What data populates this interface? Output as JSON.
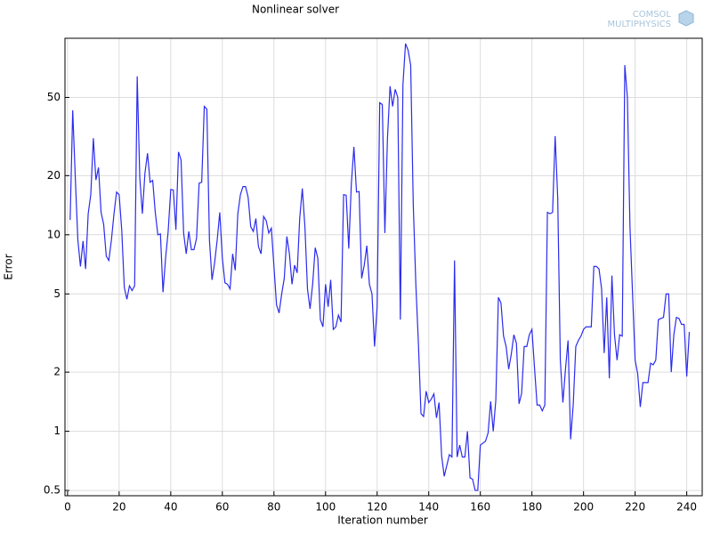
{
  "chart_data": {
    "type": "line",
    "title": "Nonlinear solver",
    "xlabel": "Iteration number",
    "ylabel": "Error",
    "log_y": true,
    "grid": true,
    "x": [
      1,
      2,
      3,
      4,
      5,
      6,
      7,
      8,
      9,
      10,
      11,
      12,
      13,
      14,
      15,
      16,
      17,
      18,
      19,
      20,
      21,
      22,
      23,
      24,
      25,
      26,
      27,
      28,
      29,
      30,
      31,
      32,
      33,
      34,
      35,
      36,
      37,
      38,
      39,
      40,
      41,
      42,
      43,
      44,
      45,
      46,
      47,
      48,
      49,
      50,
      51,
      52,
      53,
      54,
      55,
      56,
      57,
      58,
      59,
      60,
      61,
      62,
      63,
      64,
      65,
      66,
      67,
      68,
      69,
      70,
      71,
      72,
      73,
      74,
      75,
      76,
      77,
      78,
      79,
      80,
      81,
      82,
      83,
      84,
      85,
      86,
      87,
      88,
      89,
      90,
      91,
      92,
      93,
      94,
      95,
      96,
      97,
      98,
      99,
      100,
      101,
      102,
      103,
      104,
      105,
      106,
      107,
      108,
      109,
      110,
      111,
      112,
      113,
      114,
      115,
      116,
      117,
      118,
      119,
      120,
      121,
      122,
      123,
      124,
      125,
      126,
      127,
      128,
      129,
      130,
      131,
      132,
      133,
      134,
      135,
      136,
      137,
      138,
      139,
      140,
      141,
      142,
      143,
      144,
      145,
      146,
      147,
      148,
      149,
      150,
      151,
      152,
      153,
      154,
      155,
      156,
      157,
      158,
      159,
      160,
      161,
      162,
      163,
      164,
      165,
      166,
      167,
      168,
      169,
      170,
      171,
      172,
      173,
      174,
      175,
      176,
      177,
      178,
      179,
      180,
      181,
      182,
      183,
      184,
      185,
      186,
      187,
      188,
      189,
      190,
      191,
      192,
      193,
      194,
      195,
      196,
      197,
      198,
      199,
      200,
      201,
      202,
      203,
      204,
      205,
      206,
      207,
      208,
      209,
      210,
      211,
      212,
      213,
      214,
      215,
      216,
      217,
      218,
      219,
      220,
      221,
      222,
      223,
      224,
      225,
      226,
      227,
      228,
      229,
      230,
      231,
      232,
      233,
      234,
      235,
      236,
      237,
      238,
      239,
      240,
      241
    ],
    "series": [
      {
        "name": "Error",
        "color": "#2b2bee",
        "values": [
          11.9,
          43,
          19.5,
          9.4,
          6.9,
          9.3,
          6.7,
          12.8,
          16,
          31,
          19,
          22,
          13,
          11.3,
          7.8,
          7.4,
          9.4,
          12.8,
          16.5,
          16,
          10.6,
          5.4,
          4.7,
          5.5,
          5.2,
          5.5,
          64,
          19.5,
          12.8,
          20.6,
          26,
          18.5,
          18.9,
          13,
          10,
          10.1,
          5.1,
          7.6,
          10.4,
          17,
          16.9,
          10.6,
          26.4,
          24,
          10.2,
          8.0,
          10.4,
          8.4,
          8.4,
          9.6,
          18.3,
          18.5,
          45,
          43.6,
          9.4,
          5.9,
          7.2,
          9.4,
          13,
          7.6,
          5.7,
          5.6,
          5.3,
          8,
          6.6,
          12.8,
          16,
          17.6,
          17.6,
          15.5,
          11,
          10.4,
          12.1,
          8.7,
          8,
          12.4,
          11.8,
          10.2,
          10.8,
          6.9,
          4.4,
          4.0,
          5.0,
          6.0,
          9.8,
          8,
          5.6,
          7,
          6.4,
          12.2,
          17.2,
          11,
          5.3,
          4.2,
          5.6,
          8.6,
          7.6,
          3.7,
          3.4,
          5.6,
          4.3,
          5.9,
          3.3,
          3.4,
          3.9,
          3.6,
          16,
          15.9,
          8.5,
          18.2,
          28,
          16.5,
          16.6,
          6,
          7,
          8.8,
          5.6,
          5.0,
          2.7,
          4.3,
          47,
          46,
          10.2,
          31,
          57,
          45,
          55,
          50,
          3.7,
          58,
          94,
          87,
          73,
          14.3,
          5.6,
          2.8,
          1.23,
          1.19,
          1.6,
          1.4,
          1.46,
          1.55,
          1.17,
          1.4,
          0.75,
          0.59,
          0.67,
          0.76,
          0.74,
          7.4,
          0.74,
          0.85,
          0.74,
          0.74,
          1.0,
          0.58,
          0.57,
          0.5,
          0.5,
          0.85,
          0.87,
          0.89,
          0.98,
          1.42,
          1.0,
          1.44,
          4.8,
          4.5,
          3.05,
          2.7,
          2.07,
          2.47,
          3.1,
          2.8,
          1.38,
          1.56,
          2.7,
          2.7,
          3.1,
          3.3,
          2.1,
          1.36,
          1.36,
          1.27,
          1.36,
          13,
          12.8,
          13,
          31.8,
          15.3,
          2.3,
          1.4,
          2.07,
          2.9,
          0.91,
          1.36,
          2.7,
          2.9,
          3.05,
          3.3,
          3.4,
          3.4,
          3.4,
          6.9,
          6.9,
          6.7,
          5.3,
          2.5,
          4.8,
          1.86,
          6.2,
          3.1,
          2.3,
          3.1,
          3.05,
          73,
          50,
          11,
          5,
          2.3,
          1.96,
          1.33,
          1.77,
          1.77,
          1.77,
          2.22,
          2.18,
          2.3,
          3.7,
          3.75,
          3.8,
          5,
          5,
          2.0,
          3.1,
          3.8,
          3.75,
          3.5,
          3.5,
          1.9,
          3.2
        ]
      }
    ],
    "xlim": [
      -1,
      246
    ],
    "xticks": [
      0,
      20,
      40,
      60,
      80,
      100,
      120,
      140,
      160,
      180,
      200,
      220,
      240
    ],
    "ylim": [
      0.47,
      100
    ],
    "yticks": [
      0.5,
      1,
      2,
      5,
      10,
      20,
      50
    ]
  },
  "logo": {
    "line1": "COMSOL",
    "line2": "MULTIPHYSICS"
  }
}
